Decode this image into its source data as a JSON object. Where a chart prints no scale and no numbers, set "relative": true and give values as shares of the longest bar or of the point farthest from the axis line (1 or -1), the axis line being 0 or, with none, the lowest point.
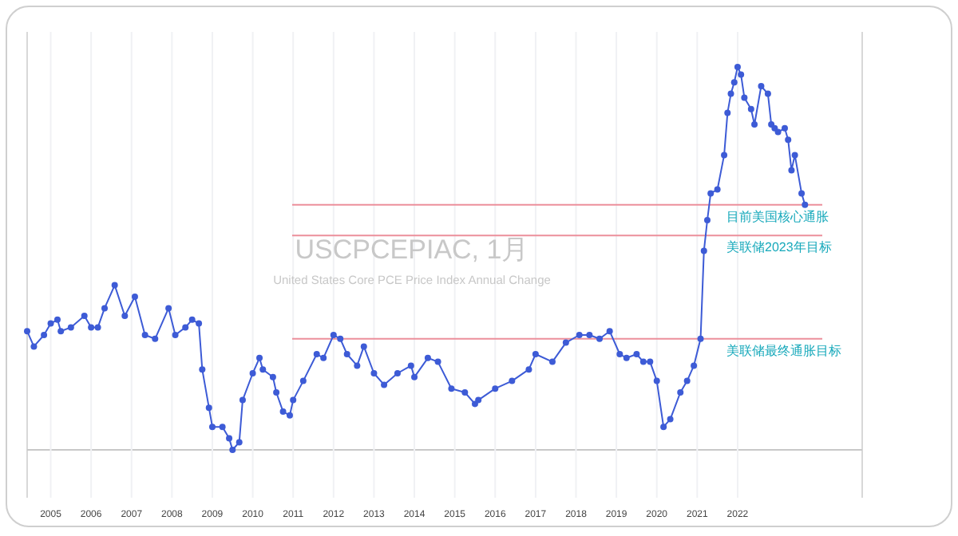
{
  "chart_data": {
    "type": "line",
    "title": "USCPCEPIAC, 1月",
    "subtitle": "United States Core PCE Price Index Annual Change",
    "relative": true,
    "marker": "circle",
    "grid": "x",
    "xlim": [
      "2004-06",
      "2025-02"
    ],
    "xticks": [
      {
        "value": "2005",
        "label": "2005"
      },
      {
        "value": "2006",
        "label": "2006"
      },
      {
        "value": "2007",
        "label": "2007"
      },
      {
        "value": "2008",
        "label": "2008"
      },
      {
        "value": "2009",
        "label": "2009"
      },
      {
        "value": "2010",
        "label": "2010"
      },
      {
        "value": "2011",
        "label": "2011"
      },
      {
        "value": "2012",
        "label": "2012"
      },
      {
        "value": "2013",
        "label": "2013"
      },
      {
        "value": "2014",
        "label": "2014"
      },
      {
        "value": "2015",
        "label": "2015"
      },
      {
        "value": "2016",
        "label": "2016"
      },
      {
        "value": "2017",
        "label": "2017"
      },
      {
        "value": "2018",
        "label": "2018"
      },
      {
        "value": "2019",
        "label": "2019"
      },
      {
        "value": "2020",
        "label": "2020"
      },
      {
        "value": "2021",
        "label": "2021"
      },
      {
        "value": "2022",
        "label": "2022"
      }
    ],
    "series": [
      {
        "color": "#3d5bd6",
        "x": [
          "2004-06",
          "2004-08",
          "2004-11",
          "2005-01",
          "2005-03",
          "2005-04",
          "2005-07",
          "2005-11",
          "2006-01",
          "2006-03",
          "2006-05",
          "2006-08",
          "2006-11",
          "2007-02",
          "2007-05",
          "2007-08",
          "2007-12",
          "2008-02",
          "2008-05",
          "2008-07",
          "2008-09",
          "2008-10",
          "2008-12",
          "2009-01",
          "2009-04",
          "2009-06",
          "2009-07",
          "2009-09",
          "2009-10",
          "2010-01",
          "2010-03",
          "2010-04",
          "2010-07",
          "2010-08",
          "2010-10",
          "2010-12",
          "2011-01",
          "2011-04",
          "2011-08",
          "2011-10",
          "2012-01",
          "2012-03",
          "2012-05",
          "2012-08",
          "2012-10",
          "2013-01",
          "2013-04",
          "2013-08",
          "2013-12",
          "2014-01",
          "2014-05",
          "2014-08",
          "2014-12",
          "2015-04",
          "2015-07",
          "2015-08",
          "2016-01",
          "2016-06",
          "2016-11",
          "2017-01",
          "2017-06",
          "2017-10",
          "2018-02",
          "2018-05",
          "2018-08",
          "2018-11",
          "2019-02",
          "2019-04",
          "2019-07",
          "2019-09",
          "2019-11",
          "2020-01",
          "2020-03",
          "2020-05",
          "2020-08",
          "2020-10",
          "2020-12",
          "2021-02",
          "2021-03",
          "2021-04",
          "2021-05",
          "2021-07",
          "2021-09",
          "2021-10",
          "2021-11",
          "2021-12",
          "2022-01",
          "2022-02",
          "2022-03",
          "2022-05",
          "2022-06",
          "2022-08",
          "2022-10",
          "2022-11",
          "2022-12",
          "2023-01",
          "2023-03",
          "2023-04",
          "2023-05",
          "2023-06",
          "2023-08",
          "2023-09"
        ],
        "values": [
          0.31,
          0.27,
          0.3,
          0.33,
          0.34,
          0.31,
          0.32,
          0.35,
          0.32,
          0.32,
          0.37,
          0.43,
          0.35,
          0.4,
          0.3,
          0.29,
          0.37,
          0.3,
          0.32,
          0.34,
          0.33,
          0.21,
          0.11,
          0.06,
          0.06,
          0.03,
          0.0,
          0.02,
          0.13,
          0.2,
          0.24,
          0.21,
          0.19,
          0.15,
          0.1,
          0.09,
          0.13,
          0.18,
          0.25,
          0.24,
          0.3,
          0.29,
          0.25,
          0.22,
          0.27,
          0.2,
          0.17,
          0.2,
          0.22,
          0.19,
          0.24,
          0.23,
          0.16,
          0.15,
          0.12,
          0.13,
          0.16,
          0.18,
          0.21,
          0.25,
          0.23,
          0.28,
          0.3,
          0.3,
          0.29,
          0.31,
          0.25,
          0.24,
          0.25,
          0.23,
          0.23,
          0.18,
          0.06,
          0.08,
          0.15,
          0.18,
          0.22,
          0.29,
          0.52,
          0.6,
          0.67,
          0.68,
          0.77,
          0.88,
          0.93,
          0.96,
          1.0,
          0.98,
          0.92,
          0.89,
          0.85,
          0.95,
          0.93,
          0.85,
          0.84,
          0.83,
          0.84,
          0.81,
          0.73,
          0.77,
          0.67,
          0.64
        ]
      }
    ],
    "ref_lines": [
      {
        "axis": "y",
        "value": 0.64,
        "label": "目前美国核心通胀",
        "color": "#ec8f9b"
      },
      {
        "axis": "y",
        "value": 0.56,
        "label": "美联储2023年目标",
        "color": "#ec8f9b"
      },
      {
        "axis": "y",
        "value": 0.29,
        "label": "美联储最终通胀目标",
        "color": "#ec8f9b"
      }
    ]
  }
}
